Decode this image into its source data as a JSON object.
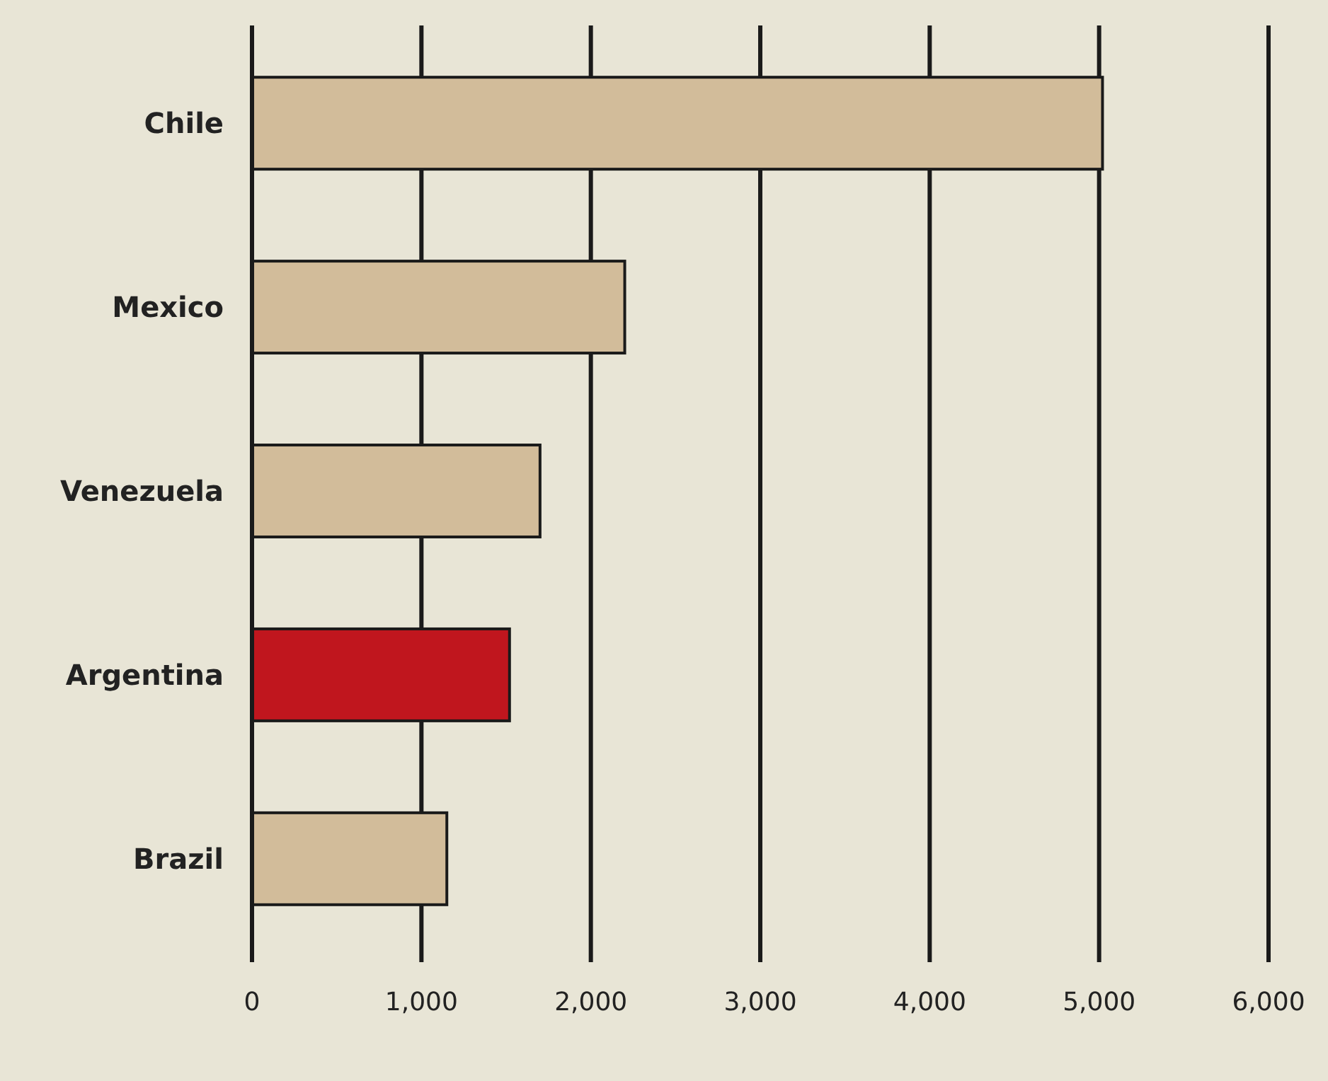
{
  "chart_data": {
    "type": "bar",
    "orientation": "horizontal",
    "categories": [
      "Chile",
      "Mexico",
      "Venezuela",
      "Argentina",
      "Brazil"
    ],
    "values": [
      5020,
      2200,
      1700,
      1520,
      1150
    ],
    "colors": [
      "#d2bc9a",
      "#d2bc9a",
      "#d2bc9a",
      "#c0161e",
      "#d2bc9a"
    ],
    "xlim": [
      0,
      6000
    ],
    "xticks": [
      0,
      {
        "value": 1000,
        "label": "1,000"
      },
      {
        "value": 2000,
        "label": "2,000"
      },
      {
        "value": 3000,
        "label": "3,000"
      },
      {
        "value": 4000,
        "label": "4,000"
      },
      {
        "value": 5000,
        "label": "5,000"
      },
      {
        "value": 6000,
        "label": "6,000"
      }
    ],
    "grid": "x"
  }
}
